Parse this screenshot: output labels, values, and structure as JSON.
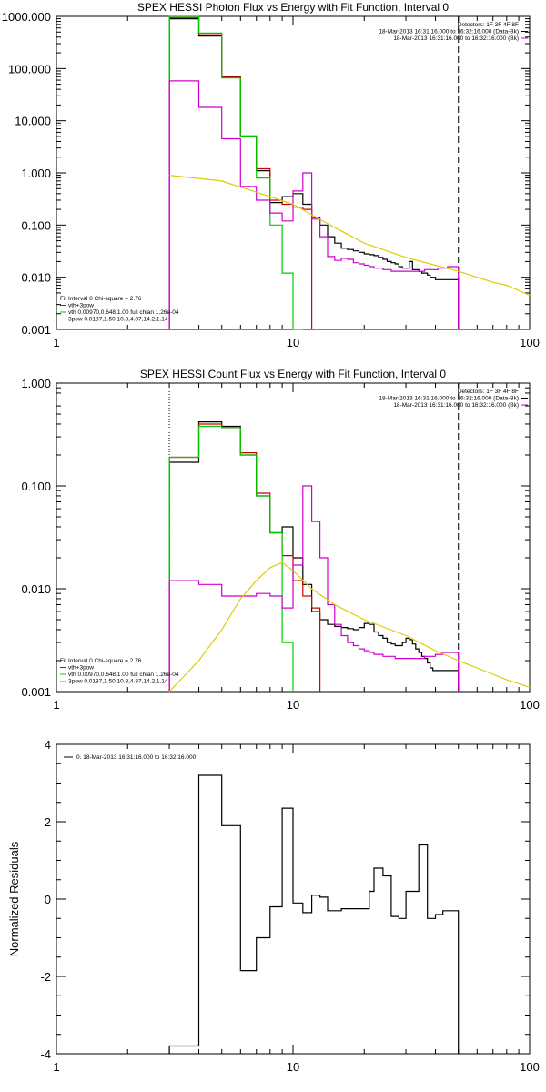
{
  "chart_data": [
    {
      "type": "line",
      "title": "SPEX HESSI Photon Flux vs Energy with Fit Function, Interval 0",
      "xlabel": "",
      "ylabel": "",
      "xscale": "log",
      "yscale": "log",
      "xlim": [
        1,
        100
      ],
      "ylim": [
        0.001,
        1000
      ],
      "x_ticks": [
        "1",
        "10",
        "100"
      ],
      "y_ticks": [
        "0.001",
        "0.010",
        "0.100",
        "1.000",
        "10.000",
        "100.000",
        "1000.000"
      ],
      "top_right_text": [
        "Detectors: 1F 3F 4F 8F",
        "18-Mar-2013 16:31:16.000 to 16:32:16.000 (Data-Bk)",
        "18-Mar-2013 16:31:16.000 to 16:32:16.000 (Bk)"
      ],
      "legend_text": [
        "Fit Interval 0   Chi-square = 2.76",
        "vth+3pow",
        "vth 0.00970,0.648,1.00  full chian 1.26e-04",
        "3pow 0.0187,1.50,10.8,4.87,14.2,1.14"
      ],
      "vlines": [
        {
          "x": 3,
          "style": "dotted"
        },
        {
          "x": 50,
          "style": "dashed"
        }
      ],
      "series": [
        {
          "role": "data_minus_bk",
          "color": "#000000",
          "step_edges": [
            3,
            4,
            5,
            6,
            7,
            8,
            9,
            10,
            11,
            12,
            13,
            14,
            15,
            16,
            17,
            18,
            19,
            20,
            21,
            22,
            23,
            24,
            25,
            26,
            27,
            28,
            29,
            30,
            31,
            32,
            33,
            34,
            35,
            36,
            37,
            38,
            39,
            40,
            41,
            42,
            43,
            44,
            45,
            46,
            47,
            48,
            49,
            50
          ],
          "values": [
            900,
            420,
            70,
            5.0,
            1.1,
            0.27,
            0.35,
            0.4,
            0.25,
            0.14,
            0.1,
            0.06,
            0.045,
            0.036,
            0.034,
            0.032,
            0.03,
            0.028,
            0.027,
            0.026,
            0.024,
            0.022,
            0.02,
            0.019,
            0.018,
            0.016,
            0.015,
            0.015,
            0.02,
            0.014,
            0.014,
            0.013,
            0.012,
            0.012,
            0.011,
            0.01,
            0.01,
            0.009,
            0.009,
            0.009,
            0.009,
            0.009,
            0.009,
            0.009,
            0.009,
            0.009,
            0.009
          ]
        },
        {
          "role": "vth_plus_3pow",
          "color": "#cc0000",
          "step_edges": [
            3,
            4,
            5,
            6,
            7,
            8,
            9,
            10,
            11,
            12
          ],
          "values": [
            950,
            470,
            68,
            5.1,
            1.2,
            0.3,
            0.25,
            0.22,
            0.2
          ]
        },
        {
          "role": "vth",
          "color": "#00cc00",
          "step_edges": [
            3,
            4,
            5,
            6,
            7,
            8,
            9,
            10,
            11
          ],
          "values": [
            1000,
            480,
            66,
            4.9,
            0.8,
            0.1,
            0.012,
            0.001
          ]
        },
        {
          "role": "background",
          "color": "#cc00cc",
          "step_edges": [
            3,
            4,
            5,
            6,
            7,
            8,
            9,
            10,
            11,
            12,
            13,
            14,
            15,
            16,
            17,
            18,
            19,
            20,
            21,
            22,
            23,
            24,
            25,
            26,
            27,
            28,
            29,
            30,
            31,
            32,
            33,
            34,
            35,
            36,
            37,
            38,
            39,
            40,
            41,
            42,
            43,
            44,
            45,
            46,
            47,
            48,
            49,
            50
          ],
          "values": [
            58,
            18,
            4.5,
            0.55,
            0.3,
            0.17,
            0.12,
            0.45,
            1.0,
            0.13,
            0.06,
            0.025,
            0.021,
            0.023,
            0.022,
            0.019,
            0.018,
            0.017,
            0.016,
            0.015,
            0.015,
            0.014,
            0.014,
            0.013,
            0.013,
            0.013,
            0.013,
            0.013,
            0.013,
            0.013,
            0.013,
            0.013,
            0.013,
            0.014,
            0.014,
            0.014,
            0.014,
            0.014,
            0.015,
            0.015,
            0.015,
            0.015,
            0.016,
            0.016,
            0.016,
            0.016,
            0.016
          ]
        },
        {
          "role": "3pow",
          "color": "#ddcc00",
          "x": [
            3,
            5,
            8,
            10,
            15,
            20,
            30,
            40,
            50,
            60,
            70,
            80,
            100
          ],
          "y": [
            0.9,
            0.7,
            0.35,
            0.25,
            0.09,
            0.045,
            0.024,
            0.017,
            0.013,
            0.01,
            0.008,
            0.007,
            0.0045
          ]
        }
      ]
    },
    {
      "type": "line",
      "title": "SPEX HESSI Count Flux vs Energy with Fit Function, Interval 0",
      "xlabel": "",
      "ylabel": "",
      "xscale": "log",
      "yscale": "log",
      "xlim": [
        1,
        100
      ],
      "ylim": [
        0.001,
        1.0
      ],
      "x_ticks": [
        "1",
        "10",
        "100"
      ],
      "y_ticks": [
        "0.001",
        "0.010",
        "0.100",
        "1.000"
      ],
      "top_right_text": [
        "Detectors: 1F 3F 4F 8F",
        "18-Mar-2013 16:31:16.000 to 16:32:16.000 (Data-Bk)",
        "18-Mar-2013 16:31:16.000 to 16:32:16.000 (Bk)"
      ],
      "legend_text": [
        "Fit Interval 0   Chi-square = 2.76",
        "vth+3pow",
        "vth 0.00970,0.648,1.00  full chian 1.26e-04",
        "3pow 0.0187,1.50,10.8,4.87,14.2,1.14"
      ],
      "vlines": [
        {
          "x": 3,
          "style": "dotted"
        },
        {
          "x": 50,
          "style": "dashed"
        }
      ],
      "series": [
        {
          "role": "data_minus_bk",
          "color": "#000000",
          "step_edges": [
            3,
            4,
            5,
            6,
            7,
            8,
            9,
            10,
            11,
            12,
            13,
            14,
            15,
            16,
            17,
            18,
            19,
            20,
            21,
            22,
            23,
            24,
            25,
            26,
            27,
            28,
            29,
            30,
            31,
            32,
            33,
            34,
            35,
            36,
            37,
            38,
            39,
            40,
            41,
            42,
            43,
            44,
            45,
            46,
            47,
            48,
            49,
            50
          ],
          "values": [
            0.17,
            0.42,
            0.38,
            0.2,
            0.08,
            0.035,
            0.04,
            0.02,
            0.011,
            0.006,
            0.005,
            0.0045,
            0.0043,
            0.0042,
            0.0041,
            0.004,
            0.0042,
            0.0046,
            0.0045,
            0.0038,
            0.0035,
            0.0033,
            0.003,
            0.0029,
            0.0028,
            0.0028,
            0.003,
            0.0033,
            0.0032,
            0.0029,
            0.0026,
            0.0024,
            0.0022,
            0.0021,
            0.0019,
            0.0017,
            0.0016,
            0.0016,
            0.0016,
            0.0016,
            0.0016,
            0.0016,
            0.0016,
            0.0016,
            0.0016,
            0.0016,
            0.0016
          ]
        },
        {
          "role": "vth_plus_3pow",
          "color": "#cc0000",
          "step_edges": [
            3,
            4,
            5,
            6,
            7,
            8,
            9,
            10,
            11,
            12,
            13
          ],
          "values": [
            0.19,
            0.4,
            0.37,
            0.21,
            0.085,
            0.035,
            0.021,
            0.012,
            0.0085,
            0.0065
          ]
        },
        {
          "role": "vth",
          "color": "#00cc00",
          "step_edges": [
            3,
            4,
            5,
            6,
            7,
            8,
            9,
            10
          ],
          "values": [
            0.19,
            0.38,
            0.37,
            0.2,
            0.08,
            0.035,
            0.003
          ]
        },
        {
          "role": "background",
          "color": "#cc00cc",
          "step_edges": [
            3,
            4,
            5,
            6,
            7,
            8,
            9,
            10,
            11,
            12,
            13,
            14,
            15,
            16,
            17,
            18,
            19,
            20,
            21,
            22,
            23,
            24,
            25,
            26,
            27,
            28,
            29,
            30,
            31,
            32,
            33,
            34,
            35,
            36,
            37,
            38,
            39,
            40,
            41,
            42,
            43,
            44,
            45,
            46,
            47,
            48,
            49,
            50
          ],
          "values": [
            0.012,
            0.011,
            0.0085,
            0.0085,
            0.009,
            0.0085,
            0.0065,
            0.017,
            0.1,
            0.045,
            0.02,
            0.007,
            0.0045,
            0.0035,
            0.003,
            0.0028,
            0.0026,
            0.0025,
            0.0024,
            0.0023,
            0.0023,
            0.0022,
            0.0022,
            0.0022,
            0.0021,
            0.0021,
            0.0021,
            0.0021,
            0.0021,
            0.0021,
            0.0021,
            0.0021,
            0.0021,
            0.0022,
            0.0022,
            0.0022,
            0.0022,
            0.0023,
            0.0023,
            0.0023,
            0.0024,
            0.0024,
            0.0024,
            0.0024,
            0.0024,
            0.0024,
            0.0024
          ]
        },
        {
          "role": "3pow",
          "color": "#ddcc00",
          "x": [
            3,
            4,
            5,
            6,
            7,
            8,
            9,
            10,
            12,
            15,
            20,
            30,
            40,
            50,
            60,
            80,
            100
          ],
          "y": [
            0.0009,
            0.002,
            0.004,
            0.008,
            0.012,
            0.016,
            0.018,
            0.015,
            0.01,
            0.007,
            0.005,
            0.0035,
            0.0025,
            0.002,
            0.0017,
            0.0013,
            0.0011
          ]
        }
      ]
    },
    {
      "type": "line",
      "title": "",
      "xlabel": "",
      "ylabel": "Normalized Residuals",
      "xscale": "log",
      "yscale": "linear",
      "xlim": [
        1,
        100
      ],
      "ylim": [
        -4,
        4
      ],
      "x_ticks": [
        "1",
        "10",
        "100"
      ],
      "y_ticks": [
        "-4",
        "-2",
        "0",
        "2",
        "4"
      ],
      "legend_text": [
        "0. 18-Mar-2013 16:31:16.000 to 16:32:16.000"
      ],
      "series": [
        {
          "role": "residuals",
          "color": "#000000",
          "step_edges": [
            3,
            4,
            5,
            6,
            7,
            8,
            9,
            10,
            11,
            12,
            13,
            14,
            15,
            16,
            17,
            18,
            19,
            20,
            21,
            22,
            23,
            24,
            25,
            26,
            27,
            28,
            29,
            30,
            31,
            32,
            33,
            34,
            35,
            36,
            37,
            38,
            39,
            40,
            41,
            42,
            43,
            44,
            45,
            46,
            47,
            48,
            49,
            50
          ],
          "values": [
            -3.8,
            3.2,
            1.9,
            -1.85,
            -1.0,
            -0.2,
            2.35,
            -0.1,
            -0.35,
            0.1,
            0.05,
            -0.3,
            -0.3,
            -0.25,
            -0.25,
            -0.25,
            -0.25,
            -0.25,
            0.2,
            0.8,
            0.8,
            0.6,
            0.6,
            -0.45,
            -0.45,
            -0.5,
            -0.5,
            0.2,
            0.2,
            0.2,
            0.2,
            1.4,
            1.4,
            1.4,
            -0.5,
            -0.5,
            -0.5,
            -0.4,
            -0.4,
            -0.4,
            -0.3,
            -0.3,
            -0.3,
            -0.3,
            -0.3,
            -0.3,
            -0.3
          ]
        }
      ]
    }
  ]
}
